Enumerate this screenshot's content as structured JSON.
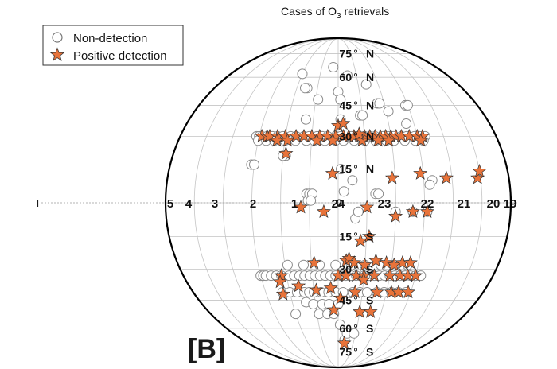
{
  "chart_data": {
    "type": "scatter",
    "title": "Cases of O",
    "title_sub": "3",
    "title_tail": " retrievals",
    "panel_label": "[B]",
    "legend": {
      "placement": "top-left",
      "entries": [
        {
          "label": "Non-detection",
          "marker": "circle"
        },
        {
          "label": "Positive detection",
          "marker": "star"
        }
      ]
    },
    "lat_labels": [
      {
        "text": "75",
        "hem": "N",
        "lat": 75
      },
      {
        "text": "60",
        "hem": "N",
        "lat": 60
      },
      {
        "text": "45",
        "hem": "N",
        "lat": 45
      },
      {
        "text": "30",
        "hem": "N",
        "lat": 30
      },
      {
        "text": "15",
        "hem": "N",
        "lat": 15
      },
      {
        "text": "0",
        "hem": "",
        "lat": 0
      },
      {
        "text": "15",
        "hem": "S",
        "lat": -15
      },
      {
        "text": "30",
        "hem": "S",
        "lat": -30
      },
      {
        "text": "45",
        "hem": "S",
        "lat": -45
      },
      {
        "text": "60",
        "hem": "S",
        "lat": -60
      },
      {
        "text": "75",
        "hem": "S",
        "lat": -75
      }
    ],
    "ra_labels": [
      {
        "text": "5",
        "ra": 5
      },
      {
        "text": "4",
        "ra": 4
      },
      {
        "text": "3",
        "ra": 3
      },
      {
        "text": "2",
        "ra": 2
      },
      {
        "text": "1",
        "ra": 1
      },
      {
        "text": "24",
        "ra": 24
      },
      {
        "text": "23",
        "ra": 23
      },
      {
        "text": "22",
        "ra": 22
      },
      {
        "text": "21",
        "ra": 21
      },
      {
        "text": "20",
        "ra": 20
      },
      {
        "text": "19",
        "ra": 19
      }
    ],
    "non_detection": [
      [
        3.4,
        30
      ],
      [
        3.3,
        30
      ],
      [
        3.2,
        30
      ],
      [
        3.0,
        30
      ],
      [
        2.8,
        30
      ],
      [
        2.6,
        30
      ],
      [
        2.4,
        30
      ],
      [
        2.1,
        30
      ],
      [
        1.9,
        30
      ],
      [
        1.6,
        30
      ],
      [
        1.4,
        30
      ],
      [
        1.1,
        30
      ],
      [
        0.9,
        30
      ],
      [
        0.7,
        30
      ],
      [
        0.4,
        30
      ],
      [
        0.2,
        30
      ],
      [
        23.8,
        30
      ],
      [
        23.6,
        30
      ],
      [
        23.3,
        30
      ],
      [
        23.1,
        30
      ],
      [
        22.9,
        30
      ],
      [
        22.6,
        30
      ],
      [
        22.4,
        30
      ],
      [
        22.2,
        30
      ],
      [
        21.9,
        30
      ],
      [
        21.7,
        30
      ],
      [
        21.4,
        30
      ],
      [
        21.2,
        30
      ],
      [
        21.0,
        30
      ],
      [
        3.3,
        28
      ],
      [
        3.0,
        28
      ],
      [
        2.7,
        28
      ],
      [
        2.3,
        28
      ],
      [
        1.9,
        28
      ],
      [
        1.5,
        28
      ],
      [
        1.2,
        28
      ],
      [
        0.8,
        28
      ],
      [
        0.4,
        28
      ],
      [
        0.1,
        28
      ],
      [
        23.7,
        28
      ],
      [
        23.3,
        28
      ],
      [
        22.9,
        28
      ],
      [
        22.5,
        28
      ],
      [
        22.2,
        28
      ],
      [
        21.8,
        28
      ],
      [
        21.4,
        28
      ],
      [
        21.1,
        28
      ],
      [
        3.4,
        17
      ],
      [
        3.3,
        17
      ],
      [
        2.2,
        21
      ],
      [
        2.3,
        21
      ],
      [
        1.4,
        4
      ],
      [
        1.3,
        4
      ],
      [
        1.2,
        4
      ],
      [
        1.35,
        1
      ],
      [
        1.25,
        1
      ],
      [
        1.8,
        54
      ],
      [
        1.9,
        54
      ],
      [
        1.2,
        48
      ],
      [
        0.3,
        52
      ],
      [
        0.2,
        48
      ],
      [
        23.4,
        40
      ],
      [
        23.3,
        40
      ],
      [
        22.6,
        46
      ],
      [
        22.5,
        46
      ],
      [
        21.4,
        45
      ],
      [
        21.3,
        45
      ],
      [
        22.2,
        42
      ],
      [
        2.3,
        62
      ],
      [
        0.6,
        66
      ],
      [
        23.8,
        61
      ],
      [
        22.9,
        56
      ],
      [
        21.6,
        36
      ],
      [
        1.6,
        38
      ],
      [
        0.2,
        38
      ],
      [
        0.2,
        15
      ],
      [
        23.8,
        10
      ],
      [
        23.0,
        4
      ],
      [
        22.9,
        4
      ],
      [
        22.3,
        -4
      ],
      [
        21.7,
        -4
      ],
      [
        21.2,
        -4
      ],
      [
        23.7,
        -7
      ],
      [
        23.6,
        -4
      ],
      [
        0.1,
        5
      ],
      [
        21.0,
        10
      ],
      [
        21.1,
        8
      ],
      [
        3.3,
        -33
      ],
      [
        3.2,
        -33
      ],
      [
        3.1,
        -33
      ],
      [
        2.9,
        -33
      ],
      [
        2.7,
        -33
      ],
      [
        2.5,
        -33
      ],
      [
        2.2,
        -33
      ],
      [
        2.0,
        -33
      ],
      [
        1.8,
        -33
      ],
      [
        1.6,
        -33
      ],
      [
        1.4,
        -33
      ],
      [
        1.2,
        -33
      ],
      [
        1.0,
        -33
      ],
      [
        0.8,
        -33
      ],
      [
        0.6,
        -33
      ],
      [
        0.4,
        -33
      ],
      [
        0.2,
        -33
      ],
      [
        0.0,
        -33
      ],
      [
        23.8,
        -33
      ],
      [
        23.6,
        -33
      ],
      [
        23.3,
        -33
      ],
      [
        23.1,
        -33
      ],
      [
        22.9,
        -33
      ],
      [
        22.7,
        -33
      ],
      [
        22.5,
        -33
      ],
      [
        22.3,
        -33
      ],
      [
        22.1,
        -33
      ],
      [
        21.9,
        -33
      ],
      [
        21.7,
        -33
      ],
      [
        21.5,
        -33
      ],
      [
        21.3,
        -33
      ],
      [
        21.1,
        -33
      ],
      [
        2.2,
        -28
      ],
      [
        1.6,
        -28
      ],
      [
        1.0,
        -28
      ],
      [
        0.4,
        -28
      ],
      [
        23.8,
        -28
      ],
      [
        23.3,
        -28
      ],
      [
        22.7,
        -28
      ],
      [
        22.2,
        -28
      ],
      [
        21.7,
        -28
      ],
      [
        2.6,
        -41
      ],
      [
        2.3,
        -41
      ],
      [
        2.0,
        -41
      ],
      [
        1.7,
        -41
      ],
      [
        1.5,
        -41
      ],
      [
        1.3,
        -41
      ],
      [
        1.0,
        -41
      ],
      [
        0.7,
        -41
      ],
      [
        0.4,
        -41
      ],
      [
        0.1,
        -41
      ],
      [
        23.7,
        -41
      ],
      [
        23.4,
        -41
      ],
      [
        23.1,
        -41
      ],
      [
        22.7,
        -41
      ],
      [
        22.4,
        -41
      ],
      [
        22.1,
        -41
      ],
      [
        21.8,
        -41
      ],
      [
        21.5,
        -41
      ],
      [
        1.7,
        -46
      ],
      [
        1.4,
        -47
      ],
      [
        1.0,
        -47
      ],
      [
        0.7,
        -47
      ],
      [
        0.3,
        -47
      ],
      [
        1.2,
        -52
      ],
      [
        0.8,
        -52
      ],
      [
        0.5,
        -52
      ],
      [
        2.3,
        -52
      ],
      [
        0.2,
        -58
      ],
      [
        23.9,
        -67
      ],
      [
        23.8,
        -63
      ],
      [
        23.4,
        -63
      ]
    ],
    "positive_detection": [
      [
        3.2,
        30
      ],
      [
        3.0,
        30
      ],
      [
        2.9,
        30
      ],
      [
        2.6,
        30
      ],
      [
        2.3,
        30
      ],
      [
        1.9,
        30
      ],
      [
        1.6,
        30
      ],
      [
        1.3,
        30
      ],
      [
        1.0,
        30
      ],
      [
        0.7,
        30
      ],
      [
        0.4,
        30
      ],
      [
        0.1,
        30
      ],
      [
        23.9,
        30
      ],
      [
        23.7,
        30
      ],
      [
        23.5,
        30
      ],
      [
        23.3,
        30
      ],
      [
        23.1,
        30
      ],
      [
        22.9,
        30
      ],
      [
        22.7,
        30
      ],
      [
        22.5,
        30
      ],
      [
        22.3,
        30
      ],
      [
        22.1,
        30
      ],
      [
        21.9,
        30
      ],
      [
        21.6,
        30
      ],
      [
        21.3,
        30
      ],
      [
        21.1,
        30
      ],
      [
        2.6,
        28
      ],
      [
        2.2,
        28
      ],
      [
        1.1,
        28
      ],
      [
        0.5,
        28
      ],
      [
        23.4,
        28
      ],
      [
        22.8,
        28
      ],
      [
        22.4,
        28
      ],
      [
        21.2,
        28
      ],
      [
        0.3,
        35
      ],
      [
        0.1,
        36
      ],
      [
        23.5,
        31
      ],
      [
        2.2,
        22
      ],
      [
        0.5,
        13
      ],
      [
        22.4,
        11
      ],
      [
        21.4,
        13
      ],
      [
        20.5,
        11
      ],
      [
        19.4,
        11
      ],
      [
        19.3,
        14
      ],
      [
        1.6,
        -2
      ],
      [
        0.8,
        -4
      ],
      [
        23.3,
        -2
      ],
      [
        22.3,
        -6
      ],
      [
        21.7,
        -4
      ],
      [
        21.2,
        -4
      ],
      [
        23.5,
        -17
      ],
      [
        23.2,
        -15
      ],
      [
        0.0,
        -26
      ],
      [
        23.9,
        -25
      ],
      [
        23.7,
        -27
      ],
      [
        23.3,
        -28
      ],
      [
        22.9,
        -26
      ],
      [
        22.5,
        -27
      ],
      [
        22.2,
        -28
      ],
      [
        21.9,
        -27
      ],
      [
        21.6,
        -27
      ],
      [
        1.2,
        -27
      ],
      [
        2.5,
        -33
      ],
      [
        2.6,
        -36
      ],
      [
        2.6,
        -42
      ],
      [
        1.9,
        -38
      ],
      [
        0.3,
        -33
      ],
      [
        0.0,
        -33
      ],
      [
        23.6,
        -33
      ],
      [
        23.3,
        -33
      ],
      [
        22.9,
        -33
      ],
      [
        22.3,
        -33
      ],
      [
        21.9,
        -33
      ],
      [
        21.6,
        -33
      ],
      [
        21.3,
        -33
      ],
      [
        1.2,
        -40
      ],
      [
        0.6,
        -39
      ],
      [
        0.2,
        -44
      ],
      [
        23.6,
        -41
      ],
      [
        23.3,
        -35
      ],
      [
        22.7,
        -41
      ],
      [
        22.1,
        -41
      ],
      [
        21.8,
        -41
      ],
      [
        21.4,
        -41
      ],
      [
        23.3,
        -51
      ],
      [
        22.8,
        -51
      ],
      [
        0.5,
        -50
      ],
      [
        23.9,
        -69
      ]
    ]
  }
}
